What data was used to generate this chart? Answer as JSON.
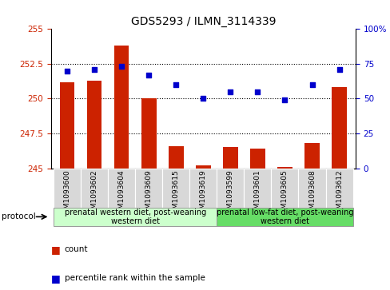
{
  "title": "GDS5293 / ILMN_3114339",
  "samples": [
    "GSM1093600",
    "GSM1093602",
    "GSM1093604",
    "GSM1093609",
    "GSM1093615",
    "GSM1093619",
    "GSM1093599",
    "GSM1093601",
    "GSM1093605",
    "GSM1093608",
    "GSM1093612"
  ],
  "count_values": [
    251.2,
    251.3,
    253.8,
    250.0,
    246.6,
    245.2,
    246.5,
    246.4,
    245.1,
    246.8,
    250.8
  ],
  "percentile_values": [
    70,
    71,
    73,
    67,
    60,
    50,
    55,
    55,
    49,
    60,
    71
  ],
  "bar_color": "#cc2200",
  "dot_color": "#0000cc",
  "ylim_left": [
    245,
    255
  ],
  "ylim_right": [
    0,
    100
  ],
  "yticks_left": [
    245,
    247.5,
    250,
    252.5,
    255
  ],
  "ytick_labels_left": [
    "245",
    "247.5",
    "250",
    "252.5",
    "255"
  ],
  "yticks_right": [
    0,
    25,
    50,
    75,
    100
  ],
  "ytick_labels_right": [
    "0",
    "25",
    "50",
    "75",
    "100%"
  ],
  "group1_label": "prenatal western diet, post-weaning\nwestern diet",
  "group2_label": "prenatal low-fat diet, post-weaning\nwestern diet",
  "group1_count": 6,
  "group1_color": "#ccffcc",
  "group2_color": "#66dd66",
  "protocol_label": "protocol",
  "legend_count": "count",
  "legend_pct": "percentile rank within the sample",
  "cell_color": "#d8d8d8",
  "title_fontsize": 10,
  "tick_fontsize": 7.5,
  "sample_fontsize": 6.5,
  "proto_fontsize": 7,
  "legend_fontsize": 7.5
}
